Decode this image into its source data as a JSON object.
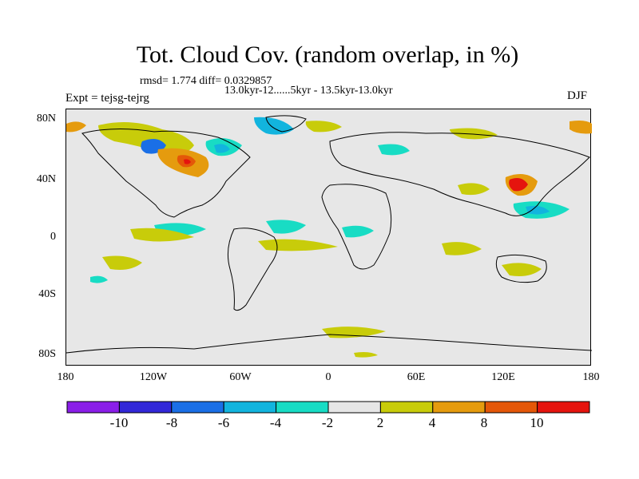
{
  "title": "Tot. Cloud Cov. (random overlap, in %)",
  "stats_line1": "rmsd= 1.774  diff= 0.0329857",
  "stats_line2": "13.0kyr-12......5kyr - 13.5kyr-13.0kyr",
  "experiment": "Expt = tejsg-tejrg",
  "season": "DJF",
  "y_ticks": [
    "80N",
    "40N",
    "0",
    "40S",
    "80S"
  ],
  "x_ticks": [
    "180",
    "120W",
    "60W",
    "0",
    "60E",
    "120E",
    "180"
  ],
  "colorbar": {
    "labels": [
      "-10",
      "-8",
      "-6",
      "-4",
      "-2",
      "2",
      "4",
      "8",
      "10"
    ],
    "colors": [
      "#8a1ee8",
      "#3228d8",
      "#1a6fe6",
      "#12b4de",
      "#18dcc4",
      "#e6e6e6",
      "#c8cc0a",
      "#e59b0e",
      "#e45708",
      "#e5140e"
    ]
  },
  "colors": {
    "land_bg": "#e7e7e7",
    "coast": "#000000"
  }
}
